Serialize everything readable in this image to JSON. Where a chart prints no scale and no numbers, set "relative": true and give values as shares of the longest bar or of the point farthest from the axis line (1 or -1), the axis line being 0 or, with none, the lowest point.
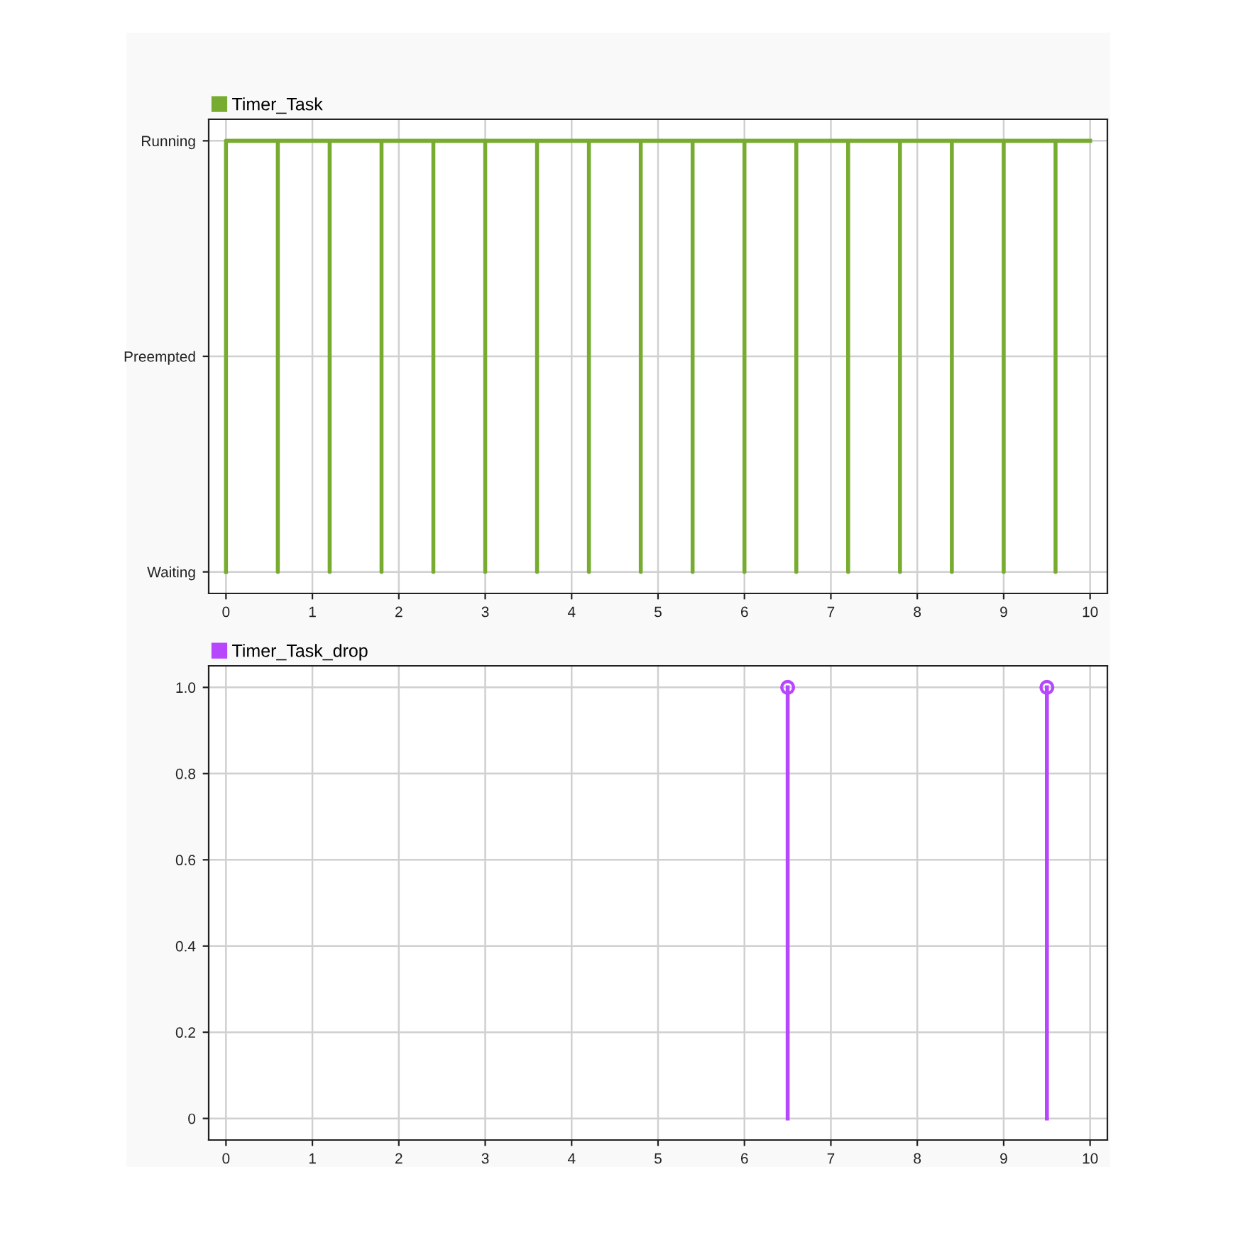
{
  "chart_data": [
    {
      "type": "line",
      "xlim": [
        -0.2,
        10.2
      ],
      "xticks": [
        0,
        1,
        2,
        3,
        4,
        5,
        6,
        7,
        8,
        9,
        10
      ],
      "relative": true,
      "y_categories": [
        "Running",
        "Preempted",
        "Waiting"
      ],
      "grid": true,
      "legend": "top left",
      "marker": "none",
      "line_style": "solid",
      "series": [
        {
          "name": "Timer_Task",
          "color": "#77ac30",
          "x": [
            0,
            0,
            0.6,
            0.6,
            0.6,
            1.2,
            1.2,
            1.2,
            1.8,
            1.8,
            1.8,
            2.4,
            2.4,
            2.4,
            3.0,
            3.0,
            3.0,
            3.6,
            3.6,
            3.6,
            4.2,
            4.2,
            4.2,
            4.8,
            4.8,
            4.8,
            5.4,
            5.4,
            5.4,
            6.0,
            6.0,
            6.0,
            6.6,
            6.6,
            6.6,
            7.2,
            7.2,
            7.2,
            7.8,
            7.8,
            7.8,
            8.4,
            8.4,
            8.4,
            9.0,
            9.0,
            9.0,
            9.6,
            9.6,
            9.6,
            10
          ],
          "values": [
            0,
            1,
            1,
            0,
            1,
            1,
            0,
            1,
            1,
            0,
            1,
            1,
            0,
            1,
            1,
            0,
            1,
            1,
            0,
            1,
            1,
            0,
            1,
            1,
            0,
            1,
            1,
            0,
            1,
            1,
            0,
            1,
            1,
            0,
            1,
            1,
            0,
            1,
            1,
            0,
            1,
            1,
            0,
            1,
            1,
            0,
            1,
            1,
            0,
            1,
            1
          ]
        }
      ]
    },
    {
      "type": "lollipop",
      "xlim": [
        -0.2,
        10.2
      ],
      "xticks": [
        0,
        1,
        2,
        3,
        4,
        5,
        6,
        7,
        8,
        9,
        10
      ],
      "ylim": [
        -0.05,
        1.05
      ],
      "yticks": [
        0,
        0.2,
        0.4,
        0.6,
        0.8,
        {
          "value": 1,
          "label": "1.0"
        }
      ],
      "grid": true,
      "legend": "top left",
      "marker": "circle",
      "series": [
        {
          "name": "Timer_Task_drop",
          "color": "#b746ff",
          "x": [
            6.5,
            9.5
          ],
          "values": [
            1,
            1
          ]
        }
      ]
    }
  ]
}
